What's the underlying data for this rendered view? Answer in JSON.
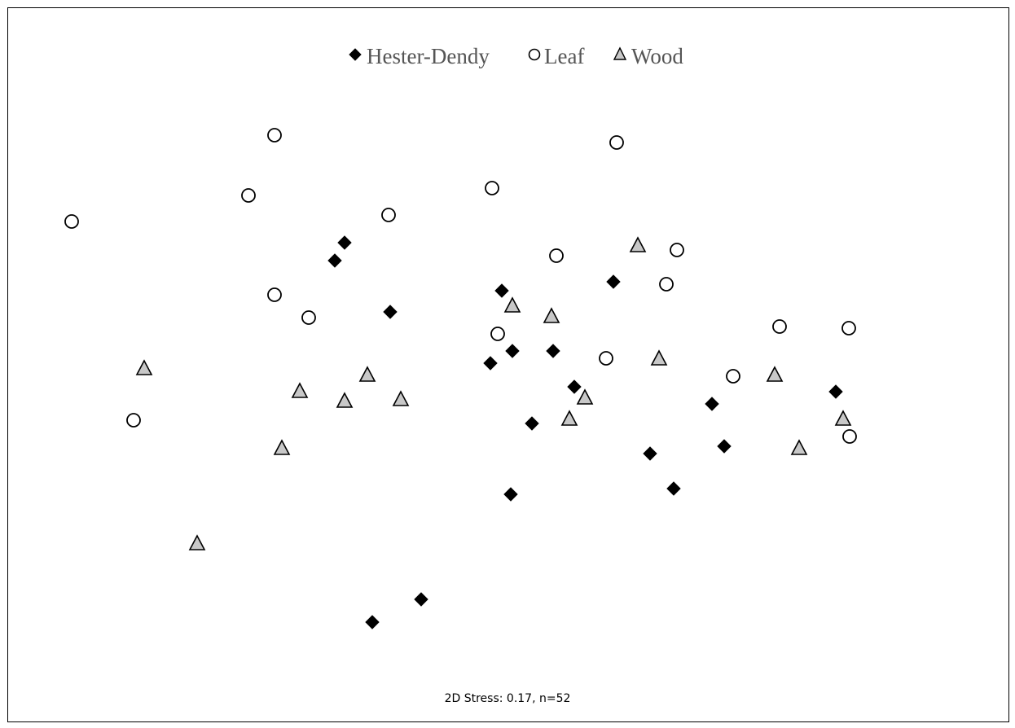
{
  "chart_data": {
    "type": "scatter",
    "title": "",
    "xlabel": "",
    "ylabel": "",
    "grid": false,
    "legend_position": "top-center",
    "annotation": "2D Stress: 0.17, n=52",
    "series": [
      {
        "name": "Hester-Dendy",
        "marker": "diamond",
        "fill": "#000000",
        "points": [
          [
            423,
            298
          ],
          [
            411,
            320
          ],
          [
            479,
            383
          ],
          [
            616,
            357
          ],
          [
            753,
            346
          ],
          [
            602,
            446
          ],
          [
            629,
            431
          ],
          [
            679,
            431
          ],
          [
            705,
            475
          ],
          [
            653,
            520
          ],
          [
            627,
            607
          ],
          [
            517,
            736
          ],
          [
            457,
            764
          ],
          [
            798,
            557
          ],
          [
            827,
            600
          ],
          [
            874,
            496
          ],
          [
            889,
            548
          ],
          [
            1026,
            481
          ]
        ]
      },
      {
        "name": "Leaf",
        "marker": "circle",
        "fill": "#ffffff",
        "points": [
          [
            88,
            272
          ],
          [
            337,
            166
          ],
          [
            305,
            240
          ],
          [
            477,
            264
          ],
          [
            604,
            231
          ],
          [
            757,
            175
          ],
          [
            683,
            314
          ],
          [
            831,
            307
          ],
          [
            818,
            349
          ],
          [
            337,
            362
          ],
          [
            379,
            390
          ],
          [
            611,
            410
          ],
          [
            744,
            440
          ],
          [
            957,
            401
          ],
          [
            1042,
            403
          ],
          [
            900,
            462
          ],
          [
            164,
            516
          ],
          [
            1043,
            536
          ]
        ]
      },
      {
        "name": "Wood",
        "marker": "triangle",
        "fill": "#c8c8c8",
        "points": [
          [
            177,
            452
          ],
          [
            368,
            480
          ],
          [
            423,
            492
          ],
          [
            451,
            460
          ],
          [
            492,
            490
          ],
          [
            346,
            550
          ],
          [
            242,
            667
          ],
          [
            629,
            375
          ],
          [
            677,
            388
          ],
          [
            783,
            301
          ],
          [
            809,
            440
          ],
          [
            718,
            488
          ],
          [
            699,
            514
          ],
          [
            951,
            460
          ],
          [
            981,
            550
          ],
          [
            1035,
            514
          ]
        ]
      }
    ]
  }
}
